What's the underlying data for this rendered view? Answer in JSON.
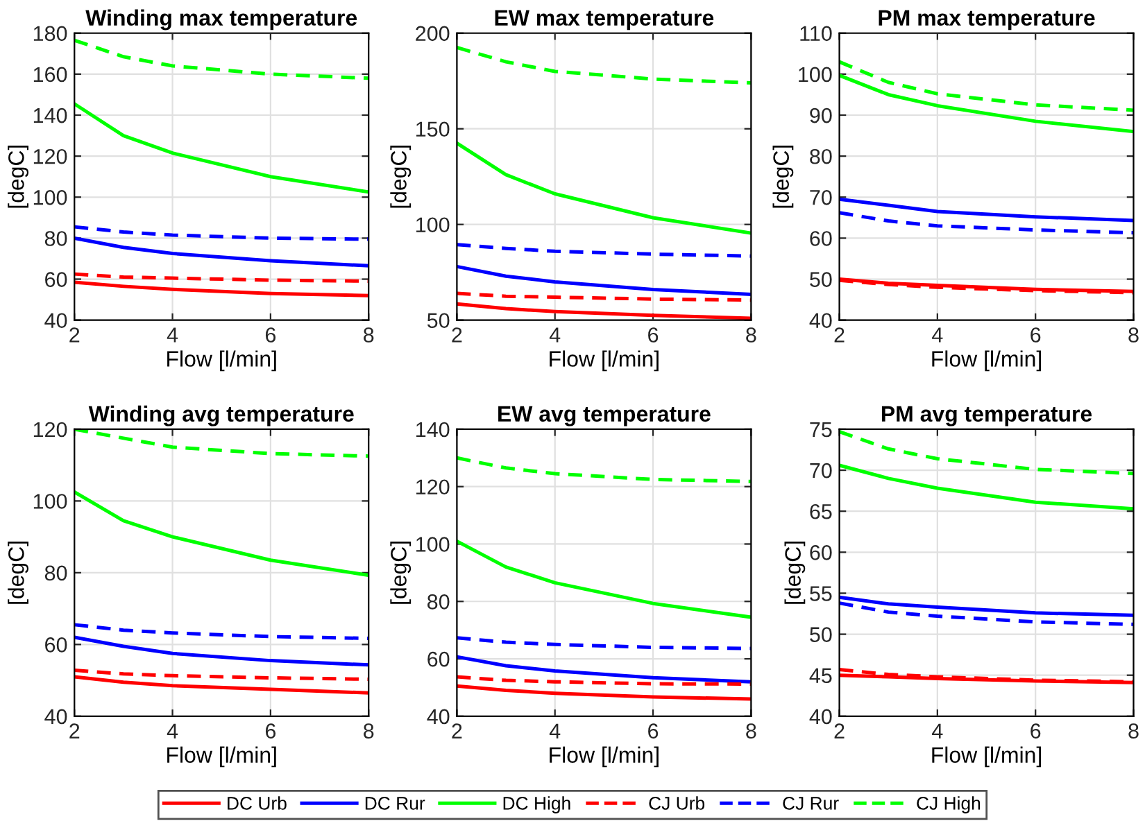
{
  "chart_data": [
    {
      "type": "line",
      "title": "Winding max temperature",
      "xlabel": "Flow [l/min]",
      "ylabel": "[degC]",
      "x": [
        2,
        3,
        4,
        6,
        8
      ],
      "xlim": [
        2,
        8
      ],
      "xticks": [
        2,
        4,
        6,
        8
      ],
      "ylim": [
        40,
        180
      ],
      "yticks": [
        40,
        60,
        80,
        100,
        120,
        140,
        160,
        180
      ],
      "grid": true,
      "legend": "bottom",
      "series": [
        {
          "name": "DC Urb",
          "color": "#ff0000",
          "line_style": "solid",
          "values": [
            58.5,
            56.5,
            55,
            53,
            52
          ]
        },
        {
          "name": "DC Rur",
          "color": "#0000ff",
          "line_style": "solid",
          "values": [
            80,
            75.5,
            72.5,
            69,
            66.5
          ]
        },
        {
          "name": "DC High",
          "color": "#00ff00",
          "line_style": "solid",
          "values": [
            145.5,
            130,
            121.5,
            110,
            102.5
          ]
        },
        {
          "name": "CJ Urb",
          "color": "#ff0000",
          "line_style": "dashed",
          "values": [
            62.5,
            61,
            60.5,
            59.5,
            59
          ]
        },
        {
          "name": "CJ Rur",
          "color": "#0000ff",
          "line_style": "dashed",
          "values": [
            85.5,
            83,
            81.5,
            80,
            79.5
          ]
        },
        {
          "name": "CJ High",
          "color": "#00ff00",
          "line_style": "dashed",
          "values": [
            176.5,
            168.5,
            164,
            160,
            158
          ]
        }
      ]
    },
    {
      "type": "line",
      "title": "EW max temperature",
      "xlabel": "Flow [l/min]",
      "ylabel": "[degC]",
      "x": [
        2,
        3,
        4,
        6,
        8
      ],
      "xlim": [
        2,
        8
      ],
      "xticks": [
        2,
        4,
        6,
        8
      ],
      "ylim": [
        50,
        200
      ],
      "yticks": [
        50,
        100,
        150,
        200
      ],
      "grid": true,
      "series": [
        {
          "color": "#ff0000",
          "line_style": "solid",
          "values": [
            58.5,
            56,
            54.5,
            52.5,
            51
          ]
        },
        {
          "color": "#0000ff",
          "line_style": "solid",
          "values": [
            78,
            73,
            70,
            66,
            63.5
          ]
        },
        {
          "color": "#00ff00",
          "line_style": "solid",
          "values": [
            142.5,
            126,
            116,
            103.5,
            95.5
          ]
        },
        {
          "color": "#ff0000",
          "line_style": "dashed",
          "values": [
            64,
            62.5,
            62,
            61,
            60.5
          ]
        },
        {
          "color": "#0000ff",
          "line_style": "dashed",
          "values": [
            89.5,
            87.5,
            86,
            84.5,
            83.5
          ]
        },
        {
          "color": "#00ff00",
          "line_style": "dashed",
          "values": [
            192.5,
            185,
            180,
            176,
            174
          ]
        }
      ]
    },
    {
      "type": "line",
      "title": "PM max temperature",
      "xlabel": "Flow [l/min]",
      "ylabel": "[degC]",
      "x": [
        2,
        3,
        4,
        6,
        8
      ],
      "xlim": [
        2,
        8
      ],
      "xticks": [
        2,
        4,
        6,
        8
      ],
      "ylim": [
        40,
        110
      ],
      "yticks": [
        40,
        50,
        60,
        70,
        80,
        90,
        100,
        110
      ],
      "grid": true,
      "series": [
        {
          "color": "#ff0000",
          "line_style": "solid",
          "values": [
            50,
            49,
            48.5,
            47.5,
            47
          ]
        },
        {
          "color": "#0000ff",
          "line_style": "solid",
          "values": [
            69.5,
            68,
            66.5,
            65.2,
            64.3
          ]
        },
        {
          "color": "#00ff00",
          "line_style": "solid",
          "values": [
            99.7,
            95,
            92.3,
            88.5,
            86
          ]
        },
        {
          "color": "#ff0000",
          "line_style": "dashed",
          "values": [
            49.7,
            48.7,
            48,
            47.2,
            46.7
          ]
        },
        {
          "color": "#0000ff",
          "line_style": "dashed",
          "values": [
            66.2,
            64.2,
            63,
            62,
            61.3
          ]
        },
        {
          "color": "#00ff00",
          "line_style": "dashed",
          "values": [
            103,
            98,
            95.2,
            92.5,
            91.2
          ]
        }
      ]
    },
    {
      "type": "line",
      "title": "Winding avg temperature",
      "xlabel": "Flow [l/min]",
      "ylabel": "[degC]",
      "x": [
        2,
        3,
        4,
        6,
        8
      ],
      "xlim": [
        2,
        8
      ],
      "xticks": [
        2,
        4,
        6,
        8
      ],
      "ylim": [
        40,
        120
      ],
      "yticks": [
        40,
        60,
        80,
        100,
        120
      ],
      "grid": true,
      "series": [
        {
          "color": "#ff0000",
          "line_style": "solid",
          "values": [
            51,
            49.5,
            48.5,
            47.5,
            46.5
          ]
        },
        {
          "color": "#0000ff",
          "line_style": "solid",
          "values": [
            62,
            59.5,
            57.5,
            55.5,
            54.3
          ]
        },
        {
          "color": "#00ff00",
          "line_style": "solid",
          "values": [
            102.5,
            94.5,
            90,
            83.5,
            79.3
          ]
        },
        {
          "color": "#ff0000",
          "line_style": "dashed",
          "values": [
            52.8,
            51.8,
            51.3,
            50.7,
            50.3
          ]
        },
        {
          "color": "#0000ff",
          "line_style": "dashed",
          "values": [
            65.5,
            64,
            63.2,
            62.2,
            61.7
          ]
        },
        {
          "color": "#00ff00",
          "line_style": "dashed",
          "values": [
            120,
            117.5,
            115,
            113.2,
            112.5
          ]
        }
      ]
    },
    {
      "type": "line",
      "title": "EW avg temperature",
      "xlabel": "Flow [l/min]",
      "ylabel": "[degC]",
      "x": [
        2,
        3,
        4,
        6,
        8
      ],
      "xlim": [
        2,
        8
      ],
      "xticks": [
        2,
        4,
        6,
        8
      ],
      "ylim": [
        40,
        140
      ],
      "yticks": [
        40,
        60,
        80,
        100,
        120,
        140
      ],
      "grid": true,
      "series": [
        {
          "color": "#ff0000",
          "line_style": "solid",
          "values": [
            50.5,
            49,
            48,
            46.7,
            46
          ]
        },
        {
          "color": "#0000ff",
          "line_style": "solid",
          "values": [
            60.7,
            57.6,
            55.8,
            53.4,
            52
          ]
        },
        {
          "color": "#00ff00",
          "line_style": "solid",
          "values": [
            101,
            92,
            86.5,
            79.3,
            74.5
          ]
        },
        {
          "color": "#ff0000",
          "line_style": "dashed",
          "values": [
            53.7,
            52.5,
            52,
            51.3,
            51.2
          ]
        },
        {
          "color": "#0000ff",
          "line_style": "dashed",
          "values": [
            67.3,
            65.8,
            65,
            64,
            63.6
          ]
        },
        {
          "color": "#00ff00",
          "line_style": "dashed",
          "values": [
            130,
            126.5,
            124.5,
            122.5,
            121.8
          ]
        }
      ]
    },
    {
      "type": "line",
      "title": "PM avg temperature",
      "xlabel": "Flow [l/min]",
      "ylabel": "[degC]",
      "x": [
        2,
        3,
        4,
        6,
        8
      ],
      "xlim": [
        2,
        8
      ],
      "xticks": [
        2,
        4,
        6,
        8
      ],
      "ylim": [
        40,
        75
      ],
      "yticks": [
        40,
        45,
        50,
        55,
        60,
        65,
        70,
        75
      ],
      "grid": true,
      "series": [
        {
          "color": "#ff0000",
          "line_style": "solid",
          "values": [
            45,
            44.8,
            44.6,
            44.3,
            44.1
          ]
        },
        {
          "color": "#0000ff",
          "line_style": "solid",
          "values": [
            54.5,
            53.7,
            53.3,
            52.6,
            52.3
          ]
        },
        {
          "color": "#00ff00",
          "line_style": "solid",
          "values": [
            70.6,
            69,
            67.8,
            66.1,
            65.3
          ]
        },
        {
          "color": "#ff0000",
          "line_style": "dashed",
          "values": [
            45.7,
            45.1,
            44.8,
            44.4,
            44.2
          ]
        },
        {
          "color": "#0000ff",
          "line_style": "dashed",
          "values": [
            53.8,
            52.7,
            52.2,
            51.5,
            51.2
          ]
        },
        {
          "color": "#00ff00",
          "line_style": "dashed",
          "values": [
            74.7,
            72.6,
            71.4,
            70.1,
            69.6
          ]
        }
      ]
    }
  ]
}
